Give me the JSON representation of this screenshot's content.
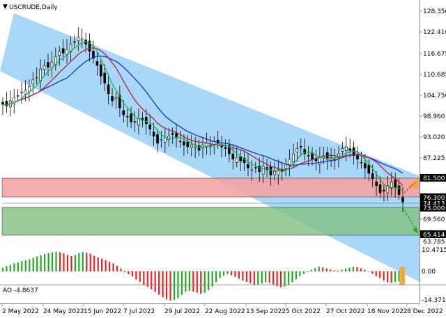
{
  "window": {
    "title": "USCRUDE,Daily",
    "menu_glyph": "▼"
  },
  "price_axis": {
    "ticks": [
      "128.350",
      "122.410",
      "116.675",
      "110.685",
      "104.750",
      "98.960",
      "93.020",
      "87.225",
      "81.500",
      "76.300",
      "74.413",
      "73.000",
      "69.560",
      "65.414",
      "63.785"
    ],
    "highlighted": [
      "81.500",
      "76.300",
      "74.413",
      "73.000",
      "65.414"
    ]
  },
  "indicator": {
    "label": "AO -4.8637",
    "ticks": [
      "10.4715",
      "0.00",
      "-14.3716"
    ]
  },
  "time_axis": {
    "labels": [
      "2 May 2022",
      "24 May 2022",
      "15 Jun 2022",
      "7 Jul 2022",
      "29 Jul 2022",
      "22 Aug 2022",
      "13 Sep 2022",
      "5 Oct 2022",
      "27 Oct 2022",
      "18 Nov 2022",
      "8 Dec 2022"
    ]
  },
  "colors": {
    "channel": "#a9d7f7",
    "resistance_zone": "#f3a3a3",
    "support_zone": "#96cc96",
    "ma_fast": "#1fb64b",
    "ma_mid": "#b2223b",
    "ma_slow": "#1a2fd6",
    "ao_up": "#22aa22",
    "ao_down": "#ee2222",
    "forecast": "#22aa22",
    "highlight": "#f7a23b"
  },
  "chart_data": {
    "type": "candlestick",
    "symbol": "USCRUDE",
    "timeframe": "Daily",
    "ylim": [
      61.0,
      131.0
    ],
    "levels": {
      "resistance_zone": [
        76.3,
        81.5
      ],
      "support_zone": [
        65.414,
        73.0
      ],
      "marked": [
        81.5,
        76.3,
        74.413,
        73.0,
        65.414
      ]
    },
    "close_approx": [
      102,
      101.5,
      103,
      104,
      104.5,
      105.5,
      106,
      107,
      109,
      109.5,
      112,
      113,
      112.5,
      114,
      115.5,
      117,
      116.5,
      117.5,
      119,
      119.5,
      121,
      120.5,
      119,
      117,
      115,
      113,
      110,
      108,
      105,
      103,
      104,
      101,
      99,
      98.5,
      97,
      97,
      98,
      97.5,
      96.5,
      95,
      93,
      91,
      92,
      92.5,
      93,
      93.5,
      92.5,
      91.5,
      90.5,
      90,
      90.5,
      90,
      89,
      90.5,
      91,
      90,
      91.5,
      91,
      90,
      89.5,
      88,
      86.5,
      87,
      86,
      85.5,
      84,
      83.5,
      84,
      83,
      84.5,
      83.5,
      82,
      83,
      83.5,
      83,
      85,
      86.5,
      88,
      89.5,
      90,
      88,
      87.5,
      86.5,
      86,
      87,
      87.5,
      86.5,
      87,
      86.5,
      88,
      89.5,
      90,
      89,
      87.5,
      86.5,
      85.5,
      84,
      82.5,
      81,
      79,
      77,
      77.5,
      79,
      80,
      78.5,
      76.5,
      74.413
    ],
    "ao_values": [
      1.8,
      2.6,
      3.2,
      3.9,
      4.3,
      5.0,
      5.4,
      5.9,
      6.6,
      7.3,
      7.8,
      8.5,
      8.9,
      9.3,
      9.5,
      9.3,
      8.7,
      8.0,
      7.4,
      7.9,
      8.8,
      9.4,
      9.0,
      8.6,
      7.6,
      6.8,
      6.2,
      5.4,
      4.7,
      3.9,
      2.7,
      1.4,
      -0.4,
      -1.4,
      -2.4,
      -3.9,
      -5.1,
      -6.5,
      -7.6,
      -8.8,
      -10.1,
      -11.5,
      -12.7,
      -13.8,
      -14.37,
      -14.0,
      -13.1,
      -11.5,
      -10.0,
      -9.6,
      -9.9,
      -10.5,
      -11.0,
      -10.5,
      -9.3,
      -7.5,
      -5.3,
      -3.3,
      -2.1,
      -1.3,
      -1.9,
      -2.7,
      -3.6,
      -4.5,
      -5.2,
      -5.9,
      -6.6,
      -6.4,
      -5.9,
      -5.3,
      -5.7,
      -6.4,
      -7.3,
      -7.8,
      -7.4,
      -6.5,
      -5.4,
      -3.9,
      -2.4,
      -1.3,
      -0.3,
      0.8,
      1.6,
      2.3,
      1.9,
      1.5,
      0.9,
      0.5,
      0.4,
      0.9,
      1.4,
      1.8,
      2.2,
      2.0,
      1.5,
      0.8,
      -0.1,
      -1.2,
      -2.4,
      -3.4,
      -4.5,
      -5.4,
      -5.6,
      -5.2,
      -4.9,
      -4.86
    ]
  }
}
